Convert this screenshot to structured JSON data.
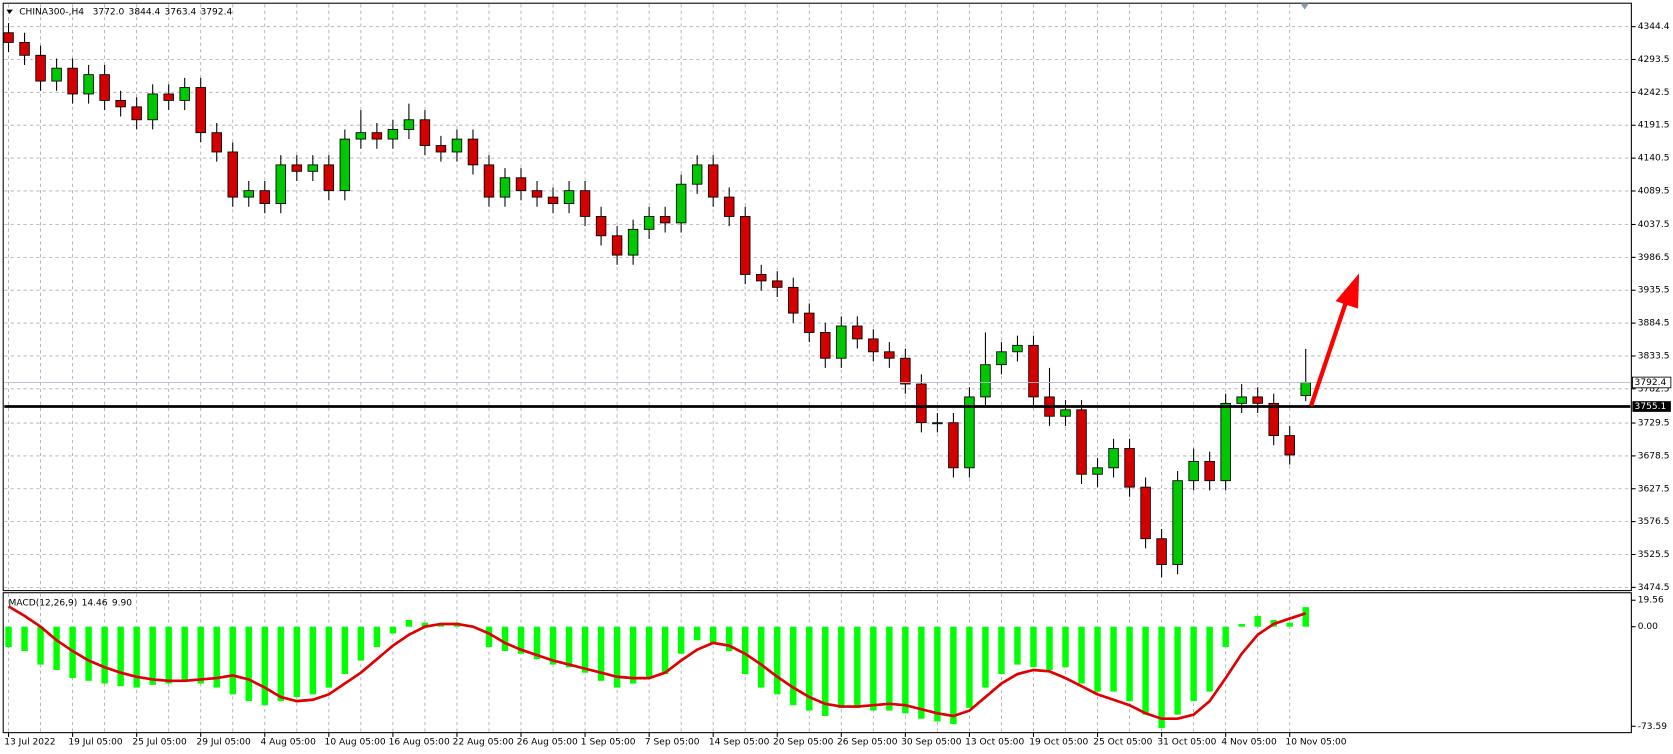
{
  "chart_data": [
    {
      "type": "candlestick",
      "title": "CHINA300-,H4",
      "value_labels": [
        "3772.0",
        "3844.4",
        "3763.4",
        "3792.4"
      ],
      "categories": [
        "13 Jul 2022",
        null,
        null,
        null,
        "19 Jul 05:00",
        null,
        null,
        null,
        "25 Jul 05:00",
        null,
        null,
        null,
        "29 Jul 05:00",
        null,
        null,
        null,
        "4 Aug 05:00",
        null,
        null,
        null,
        "10 Aug 05:00",
        null,
        null,
        null,
        "16 Aug 05:00",
        null,
        null,
        null,
        "22 Aug 05:00",
        null,
        null,
        null,
        "26 Aug 05:00",
        null,
        null,
        null,
        "1 Sep 05:00",
        null,
        null,
        null,
        "7 Sep 05:00",
        null,
        null,
        null,
        "14 Sep 05:00",
        null,
        null,
        null,
        "20 Sep 05:00",
        null,
        null,
        null,
        "26 Sep 05:00",
        null,
        null,
        null,
        "30 Sep 05:00",
        null,
        null,
        null,
        "13 Oct 05:00",
        null,
        null,
        null,
        "19 Oct 05:00",
        null,
        null,
        null,
        "25 Oct 05:00",
        null,
        null,
        null,
        "31 Oct 05:00",
        null,
        null,
        null,
        "4 Nov 05:00",
        null,
        null,
        null,
        "10 Nov 05:00",
        null
      ],
      "open": [
        4335,
        4320,
        4300,
        4260,
        4280,
        4240,
        4270,
        4230,
        4220,
        4200,
        4240,
        4230,
        4250,
        4180,
        4150,
        4080,
        4090,
        4070,
        4130,
        4120,
        4130,
        4090,
        4170,
        4180,
        4170,
        4185,
        4200,
        4160,
        4150,
        4170,
        4130,
        4080,
        4110,
        4090,
        4080,
        4070,
        4090,
        4050,
        4020,
        3990,
        4030,
        4050,
        4040,
        4100,
        4130,
        4080,
        4050,
        3960,
        3950,
        3940,
        3900,
        3870,
        3830,
        3880,
        3860,
        3840,
        3830,
        3790,
        3730,
        3730,
        3660,
        3770,
        3820,
        3840,
        3850,
        3770,
        3740,
        3750,
        3650,
        3660,
        3690,
        3630,
        3550,
        3510,
        3640,
        3670,
        3640,
        3760,
        3770,
        3760,
        3710,
        3772.0
      ],
      "high": [
        4350,
        4335,
        4315,
        4295,
        4295,
        4285,
        4285,
        4245,
        4235,
        4255,
        4255,
        4265,
        4265,
        4195,
        4165,
        4105,
        4105,
        4145,
        4145,
        4145,
        4145,
        4185,
        4215,
        4195,
        4200,
        4225,
        4215,
        4175,
        4185,
        4185,
        4145,
        4125,
        4125,
        4105,
        4095,
        4105,
        4105,
        4065,
        4035,
        4045,
        4065,
        4065,
        4115,
        4145,
        4145,
        4095,
        4065,
        3975,
        3965,
        3955,
        3915,
        3885,
        3895,
        3895,
        3875,
        3855,
        3845,
        3805,
        3745,
        3745,
        3785,
        3870,
        3855,
        3865,
        3865,
        3815,
        3765,
        3765,
        3675,
        3705,
        3705,
        3645,
        3565,
        3655,
        3690,
        3685,
        3775,
        3790,
        3785,
        3775,
        3725,
        3844.4
      ],
      "low": [
        4305,
        4285,
        4245,
        4245,
        4225,
        4225,
        4215,
        4205,
        4185,
        4185,
        4215,
        4215,
        4165,
        4135,
        4065,
        4065,
        4055,
        4055,
        4105,
        4105,
        4075,
        4075,
        4155,
        4155,
        4155,
        4170,
        4145,
        4135,
        4135,
        4115,
        4065,
        4065,
        4075,
        4065,
        4055,
        4055,
        4035,
        4005,
        3975,
        3975,
        4015,
        4025,
        4025,
        4085,
        4065,
        4035,
        3945,
        3935,
        3925,
        3885,
        3855,
        3815,
        3815,
        3845,
        3825,
        3815,
        3775,
        3715,
        3715,
        3645,
        3645,
        3755,
        3805,
        3825,
        3755,
        3725,
        3725,
        3635,
        3630,
        3645,
        3615,
        3535,
        3490,
        3495,
        3625,
        3625,
        3625,
        3745,
        3745,
        3695,
        3665,
        3763.4
      ],
      "close": [
        4320,
        4300,
        4260,
        4280,
        4240,
        4270,
        4230,
        4220,
        4200,
        4240,
        4230,
        4250,
        4180,
        4150,
        4080,
        4090,
        4070,
        4130,
        4120,
        4130,
        4090,
        4170,
        4180,
        4170,
        4185,
        4200,
        4160,
        4150,
        4170,
        4130,
        4080,
        4110,
        4090,
        4080,
        4070,
        4090,
        4050,
        4020,
        3990,
        4030,
        4050,
        4040,
        4100,
        4130,
        4080,
        4050,
        3960,
        3950,
        3940,
        3900,
        3870,
        3830,
        3880,
        3860,
        3840,
        3830,
        3790,
        3730,
        3730,
        3660,
        3770,
        3820,
        3840,
        3850,
        3770,
        3740,
        3750,
        3650,
        3660,
        3690,
        3630,
        3550,
        3510,
        3640,
        3670,
        3640,
        3760,
        3770,
        3760,
        3710,
        3680,
        3792.4
      ],
      "up_color": "#00c800",
      "down_color": "#d40000",
      "level": 3755.1,
      "ylim": [
        3469.5,
        4362.6
      ],
      "yticks": [
        4344.4,
        4293.5,
        4242.5,
        4191.5,
        4140.5,
        4089.5,
        4037.5,
        3986.5,
        3935.5,
        3884.5,
        3833.5,
        3782.5,
        3729.5,
        3678.5,
        3627.5,
        3576.5,
        3525.5,
        3474.5
      ],
      "grid": true
    },
    {
      "type": "macd",
      "title": "MACD(12,26,9)",
      "value_labels": [
        "14.46",
        "9.90"
      ],
      "macd": [
        -15,
        -18,
        -28,
        -32,
        -38,
        -40,
        -42,
        -44,
        -45,
        -43,
        -42,
        -40,
        -42,
        -45,
        -50,
        -55,
        -58,
        -55,
        -52,
        -50,
        -45,
        -35,
        -25,
        -15,
        -5,
        5,
        3,
        2,
        3,
        0,
        -15,
        -18,
        -20,
        -24,
        -28,
        -30,
        -34,
        -40,
        -45,
        -42,
        -38,
        -35,
        -20,
        -10,
        -12,
        -18,
        -35,
        -45,
        -50,
        -58,
        -62,
        -66,
        -60,
        -60,
        -62,
        -62,
        -64,
        -68,
        -70,
        -72,
        -60,
        -45,
        -35,
        -28,
        -30,
        -32,
        -30,
        -42,
        -48,
        -48,
        -55,
        -65,
        -75,
        -65,
        -55,
        -48,
        -15,
        2,
        8,
        5,
        3,
        14.46
      ],
      "signal": [
        15,
        8,
        0,
        -10,
        -18,
        -25,
        -30,
        -34,
        -37,
        -39,
        -40,
        -40,
        -39,
        -38,
        -36,
        -39,
        -45,
        -52,
        -55,
        -54,
        -50,
        -42,
        -34,
        -24,
        -14,
        -6,
        0,
        2,
        2,
        0,
        -5,
        -12,
        -17,
        -21,
        -25,
        -28,
        -31,
        -34,
        -37,
        -38,
        -38,
        -34,
        -25,
        -17,
        -12,
        -14,
        -20,
        -28,
        -37,
        -45,
        -52,
        -57,
        -59,
        -59,
        -58,
        -57,
        -58,
        -61,
        -64,
        -66,
        -62,
        -52,
        -42,
        -35,
        -32,
        -33,
        -38,
        -44,
        -50,
        -54,
        -58,
        -64,
        -68,
        -68,
        -65,
        -55,
        -38,
        -20,
        -6,
        2,
        6,
        9.9
      ],
      "macd_color": "#00ff00",
      "signal_color": "#e00000",
      "ylim": [
        -78.3,
        25.1
      ],
      "yticks": [
        19.56,
        {
          "value": 0,
          "label": "0.00"
        },
        -73.59
      ]
    }
  ]
}
